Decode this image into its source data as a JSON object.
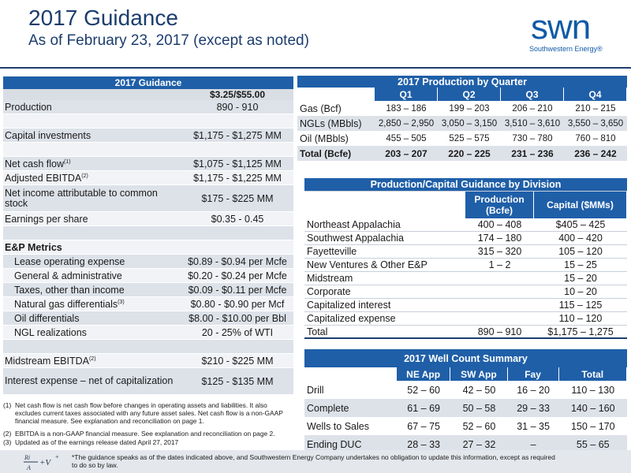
{
  "header": {
    "title": "2017 Guidance",
    "subtitle": "As of February 23, 2017 (except as noted)",
    "logo_text": "swn",
    "logo_sub": "Southwestern Energy®"
  },
  "guidance": {
    "title": "2017 Guidance",
    "price_deck": "$3.25/$55.00",
    "rows": [
      {
        "label": "Production",
        "sup": "",
        "value": "890 - 910"
      },
      {
        "label": "",
        "sup": "",
        "value": ""
      },
      {
        "label": "Capital investments",
        "sup": "",
        "value": "$1,175 - $1,275 MM"
      },
      {
        "label": "",
        "sup": "",
        "value": ""
      },
      {
        "label": "Net cash flow",
        "sup": "(1)",
        "value": "$1,075 - $1,125 MM"
      },
      {
        "label": "Adjusted EBITDA",
        "sup": "(2)",
        "value": "$1,175 - $1,225 MM"
      },
      {
        "label": "Net income attributable to common stock",
        "sup": "",
        "value": "$175 - $225 MM"
      },
      {
        "label": "Earnings per share",
        "sup": "",
        "value": "$0.35 - 0.45"
      },
      {
        "label": "",
        "sup": "",
        "value": ""
      }
    ],
    "ep_metrics_title": "E&P Metrics",
    "ep_rows": [
      {
        "label": "Lease operating expense",
        "sup": "",
        "value": "$0.89 - $0.94 per Mcfe"
      },
      {
        "label": "General & administrative",
        "sup": "",
        "value": "$0.20 - $0.24 per Mcfe"
      },
      {
        "label": "Taxes, other than income",
        "sup": "",
        "value": "$0.09 - $0.11 per Mcfe"
      },
      {
        "label": "Natural gas differentials",
        "sup": "(3)",
        "value": "$0.80 - $0.90 per Mcf"
      },
      {
        "label": "Oil differentials",
        "sup": "",
        "value": "$8.00 - $10.00 per Bbl"
      },
      {
        "label": "NGL realizations",
        "sup": "",
        "value": "20 - 25% of WTI"
      }
    ],
    "tail_rows": [
      {
        "label": "",
        "sup": "",
        "value": ""
      },
      {
        "label": "Midstream EBITDA",
        "sup": "(2)",
        "value": "$210 - $225 MM"
      },
      {
        "label": "Interest expense – net of capitalization",
        "sup": "",
        "value": "$125 - $135 MM"
      }
    ]
  },
  "production_by_quarter": {
    "title": "2017 Production by Quarter",
    "columns": [
      "Q1",
      "Q2",
      "Q3",
      "Q4"
    ],
    "rows": [
      {
        "label": "Gas (Bcf)",
        "values": [
          "183 – 186",
          "199 – 203",
          "206 – 210",
          "210 – 215"
        ]
      },
      {
        "label": "NGLs (MBbls)",
        "values": [
          "2,850 – 2,950",
          "3,050 – 3,150",
          "3,510 – 3,610",
          "3,550 – 3,650"
        ]
      },
      {
        "label": "Oil (MBbls)",
        "values": [
          "455 – 505",
          "525 – 575",
          "730 – 780",
          "760 – 810"
        ]
      },
      {
        "label": "Total (Bcfe)",
        "values": [
          "203 – 207",
          "220 – 225",
          "231 – 236",
          "236 – 242"
        ]
      }
    ]
  },
  "division": {
    "title": "Production/Capital Guidance by Division",
    "col1": "Production (Bcfe)",
    "col2": "Capital ($MMs)",
    "rows": [
      {
        "label": "Northeast Appalachia",
        "prod": "400 – 408",
        "cap": "$405 – 425"
      },
      {
        "label": "Southwest Appalachia",
        "prod": "174 – 180",
        "cap": "400 – 420"
      },
      {
        "label": "Fayetteville",
        "prod": "315 – 320",
        "cap": "105 – 120"
      },
      {
        "label": "New Ventures & Other E&P",
        "prod": "1 – 2",
        "cap": "15 – 25"
      },
      {
        "label": "Midstream",
        "prod": "",
        "cap": "15 – 20"
      },
      {
        "label": "Corporate",
        "prod": "",
        "cap": "10 – 20"
      },
      {
        "label": "Capitalized interest",
        "prod": "",
        "cap": "115 – 125"
      },
      {
        "label": "Capitalized expense",
        "prod": "",
        "cap": "110 – 120"
      },
      {
        "label": "Total",
        "prod": "890 – 910",
        "cap": "$1,175 – 1,275"
      }
    ]
  },
  "well_count": {
    "title": "2017 Well Count Summary",
    "columns": [
      "NE App",
      "SW App",
      "Fay",
      "Total"
    ],
    "rows": [
      {
        "label": "Drill",
        "values": [
          "52 – 60",
          "42 – 50",
          "16 – 20",
          "110 – 130"
        ]
      },
      {
        "label": "Complete",
        "values": [
          "61 – 69",
          "50 – 58",
          "29 – 33",
          "140 – 160"
        ]
      },
      {
        "label": "Wells to Sales",
        "values": [
          "67 – 75",
          "52 – 60",
          "31 – 35",
          "150 – 170"
        ]
      },
      {
        "label": "Ending DUC",
        "values": [
          "28 – 33",
          "27 – 32",
          "–",
          "55 – 65"
        ]
      }
    ]
  },
  "footnotes": [
    {
      "num": "(1)",
      "text": "Net cash flow is net cash flow before changes in operating assets and liabilities. It also excludes current taxes associated with any future asset sales.  Net cash flow is a non-GAAP financial measure. See explanation and reconciliation on page 1."
    },
    {
      "num": "(2)",
      "text": "EBITDA is a non-GAAP financial measure. See explanation and reconciliation on page 2."
    },
    {
      "num": "(3)",
      "text": "Updated as of the earnings release dated April 27, 2017"
    }
  ],
  "disclaimer": "*The guidance speaks as of the dates indicated above, and Southwestern Energy Company undertakes no obligation to update this information, except as required to do so by law.",
  "colors": {
    "header_blue": "#1f5fa8",
    "title_navy": "#1c3d6e",
    "row_gray": "#dde2e9"
  }
}
